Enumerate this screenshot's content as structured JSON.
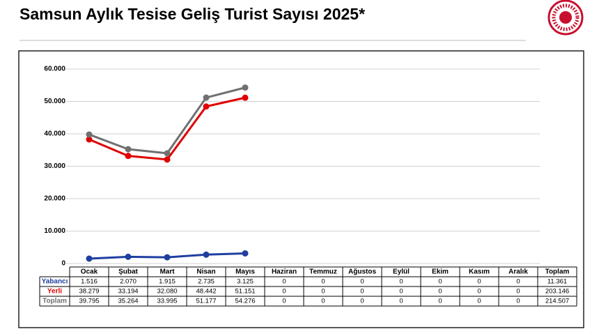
{
  "chart_data": {
    "type": "line",
    "title": "Samsun Aylık Tesise Geliş Turist Sayısı 2025*",
    "categories": [
      "Ocak",
      "Şubat",
      "Mart",
      "Nisan",
      "Mayıs",
      "Haziran",
      "Temmuz",
      "Ağustos",
      "Eylül",
      "Ekim",
      "Kasım",
      "Aralık"
    ],
    "series": [
      {
        "name": "Yabancı",
        "color": "#1f3fa0",
        "values": [
          1516,
          2070,
          1915,
          2735,
          3125,
          null,
          null,
          null,
          null,
          null,
          null,
          null
        ]
      },
      {
        "name": "Yerli",
        "color": "#e00000",
        "values": [
          38279,
          33194,
          32080,
          48442,
          51151,
          null,
          null,
          null,
          null,
          null,
          null,
          null
        ]
      },
      {
        "name": "Toplam",
        "color": "#707070",
        "values": [
          39795,
          35264,
          33995,
          51177,
          54276,
          null,
          null,
          null,
          null,
          null,
          null,
          null
        ]
      }
    ],
    "ylim": [
      0,
      60000
    ],
    "yticks": [
      0,
      {
        "value": 10000,
        "label": "10.000"
      },
      {
        "value": 20000,
        "label": "20.000"
      },
      {
        "value": 30000,
        "label": "30.000"
      },
      {
        "value": 40000,
        "label": "40.000"
      },
      {
        "value": 50000,
        "label": "50.000"
      },
      {
        "value": 60000,
        "label": "60.000"
      }
    ],
    "grid": true,
    "table": {
      "total_column": "Toplam",
      "rows": [
        [
          "1.516",
          "2.070",
          "1.915",
          "2.735",
          "3.125",
          "0",
          "0",
          "0",
          "0",
          "0",
          "0",
          "0",
          "11.361"
        ],
        [
          "38.279",
          "33.194",
          "32.080",
          "48.442",
          "51.151",
          "0",
          "0",
          "0",
          "0",
          "0",
          "0",
          "0",
          "203.146"
        ],
        [
          "39.795",
          "35.264",
          "33.995",
          "51.177",
          "54.276",
          "0",
          "0",
          "0",
          "0",
          "0",
          "0",
          "0",
          "214.507"
        ]
      ]
    }
  }
}
